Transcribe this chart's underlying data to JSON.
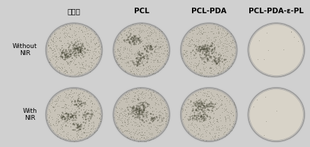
{
  "col_labels": [
    "空白组",
    "PCL",
    "PCL-PDA",
    "PCL-PDA-ε-PL"
  ],
  "row_labels": [
    "Without\nNIR",
    "With\nNIR"
  ],
  "background_color": "#c8c8c8",
  "figure_bg": "#d0d0d0",
  "border_color": "#888888",
  "dish_edge_color": "#aaaaaa",
  "col_label_fontsize": 8,
  "row_label_fontsize": 7,
  "title_fontweight": "bold",
  "grid_rows": 2,
  "grid_cols": 4,
  "dishes": [
    {
      "row": 0,
      "col": 0,
      "density": 0.55,
      "dark_patches": true,
      "bg": "#c8c3b8",
      "clear": false
    },
    {
      "row": 0,
      "col": 1,
      "density": 0.6,
      "dark_patches": true,
      "bg": "#c5c0b5",
      "clear": false
    },
    {
      "row": 0,
      "col": 2,
      "density": 0.58,
      "dark_patches": true,
      "bg": "#c6c1b6",
      "clear": false
    },
    {
      "row": 0,
      "col": 3,
      "density": 0.05,
      "dark_patches": false,
      "bg": "#d8d3c8",
      "clear": true
    },
    {
      "row": 1,
      "col": 0,
      "density": 0.55,
      "dark_patches": true,
      "bg": "#c8c3b8",
      "clear": false
    },
    {
      "row": 1,
      "col": 1,
      "density": 0.6,
      "dark_patches": true,
      "bg": "#c5c0b5",
      "clear": false
    },
    {
      "row": 1,
      "col": 2,
      "density": 0.45,
      "dark_patches": true,
      "bg": "#c8c3b8",
      "clear": false
    },
    {
      "row": 1,
      "col": 3,
      "density": 0.03,
      "dark_patches": false,
      "bg": "#d8d3c8",
      "clear": true
    }
  ]
}
